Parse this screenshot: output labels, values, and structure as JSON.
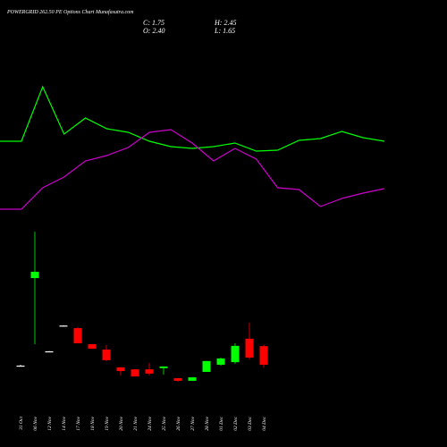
{
  "chart_data": [
    {
      "type": "candlestick",
      "title": "POWERGRID 262.50  PE Options  Chart Munafasutra.com",
      "annotations": [
        "C: 1.75",
        "H: 2.45",
        "O: 2.40",
        "L: 1.65"
      ],
      "categories": [
        "31 Oct",
        "06 Nov",
        "12 Nov",
        "14 Nov",
        "17 Nov",
        "18 Nov",
        "19 Nov",
        "20 Nov",
        "21 Nov",
        "24 Nov",
        "25 Nov",
        "26 Nov",
        "27 Nov",
        "28 Nov",
        "01 Dec",
        "02 Dec",
        "03 Dec",
        "04 Dec"
      ],
      "open": [
        1.72,
        4.78,
        2.22,
        3.12,
        3.03,
        2.47,
        2.28,
        1.66,
        1.59,
        1.59,
        1.63,
        1.28,
        1.19,
        1.5,
        1.75,
        1.84,
        2.66,
        2.4
      ],
      "high": [
        1.75,
        6.4,
        2.23,
        3.13,
        3.05,
        2.47,
        2.44,
        1.66,
        1.59,
        1.81,
        1.69,
        1.28,
        1.31,
        1.88,
        2.0,
        2.5,
        3.22,
        2.45
      ],
      "low": [
        1.7,
        2.47,
        2.21,
        3.11,
        2.5,
        2.31,
        1.88,
        1.38,
        1.34,
        1.38,
        1.41,
        1.16,
        1.19,
        1.5,
        1.72,
        1.78,
        1.94,
        1.65
      ],
      "close": [
        1.72,
        5.0,
        2.22,
        3.12,
        2.5,
        2.31,
        1.91,
        1.53,
        1.34,
        1.44,
        1.69,
        1.19,
        1.31,
        1.88,
        1.97,
        2.41,
        2.0,
        1.75
      ],
      "up_color": "#00ff00",
      "down_color": "#ff0000",
      "flat_color": "#ffffff",
      "ylim": [
        0,
        8
      ]
    },
    {
      "type": "line",
      "x": [
        0,
        1,
        2,
        3,
        4,
        5,
        6,
        7,
        8,
        9,
        10,
        11,
        12,
        13,
        14,
        15,
        16,
        17,
        18
      ],
      "xlim": [
        0,
        18
      ],
      "ylim": [
        0,
        100
      ],
      "series": [
        {
          "color": "#00ff00",
          "values": [
            51,
            51,
            81.5,
            55,
            64,
            58,
            56,
            51,
            48,
            47,
            48,
            50,
            45.5,
            46,
            51.5,
            52.5,
            56.5,
            53,
            51
          ]
        },
        {
          "color": "#cc00cc",
          "values": [
            13,
            13,
            25,
            31,
            40,
            43,
            47.5,
            56,
            57.5,
            50,
            40,
            47,
            41,
            25,
            24,
            14.5,
            19,
            22,
            24.5
          ]
        }
      ]
    }
  ]
}
